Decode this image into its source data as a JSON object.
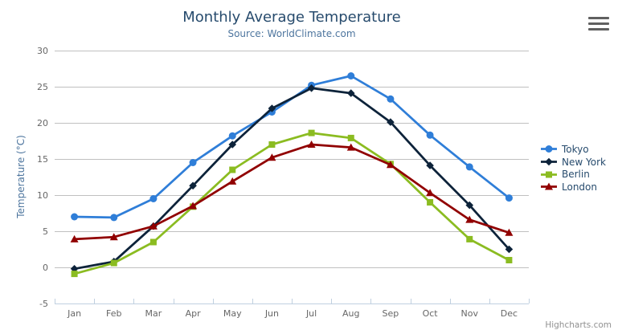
{
  "credits": "Highcharts.com",
  "chart_data": {
    "type": "line",
    "title": "Monthly Average Temperature",
    "subtitle": "Source: WorldClimate.com",
    "categories": [
      "Jan",
      "Feb",
      "Mar",
      "Apr",
      "May",
      "Jun",
      "Jul",
      "Aug",
      "Sep",
      "Oct",
      "Nov",
      "Dec"
    ],
    "series": [
      {
        "name": "Tokyo",
        "color": "#2f7ed8",
        "marker": "circle",
        "values": [
          7.0,
          6.9,
          9.5,
          14.5,
          18.2,
          21.5,
          25.2,
          26.5,
          23.3,
          18.3,
          13.9,
          9.6
        ]
      },
      {
        "name": "New York",
        "color": "#0d233a",
        "marker": "diamond",
        "values": [
          -0.2,
          0.8,
          5.7,
          11.3,
          17.0,
          22.0,
          24.8,
          24.1,
          20.1,
          14.1,
          8.6,
          2.5
        ]
      },
      {
        "name": "Berlin",
        "color": "#8bbc21",
        "marker": "square",
        "values": [
          -0.9,
          0.6,
          3.5,
          8.4,
          13.5,
          17.0,
          18.6,
          17.9,
          14.3,
          9.0,
          3.9,
          1.0
        ]
      },
      {
        "name": "London",
        "color": "#910000",
        "marker": "triangle",
        "values": [
          3.9,
          4.2,
          5.7,
          8.5,
          11.9,
          15.2,
          17.0,
          16.6,
          14.2,
          10.3,
          6.6,
          4.8
        ]
      }
    ],
    "xlabel": "",
    "ylabel": "Temperature (°C)",
    "ylim": [
      -5,
      30
    ],
    "yticks": [
      30,
      25,
      20,
      15,
      10,
      5,
      0,
      -5
    ],
    "grid": true,
    "legend_position": "right",
    "grid_color": "#c0c0c0",
    "axis_line_color": "#c0d0e0",
    "label_color": "#666666",
    "title_color": "#274b6d",
    "subtitle_color": "#4d759e"
  }
}
